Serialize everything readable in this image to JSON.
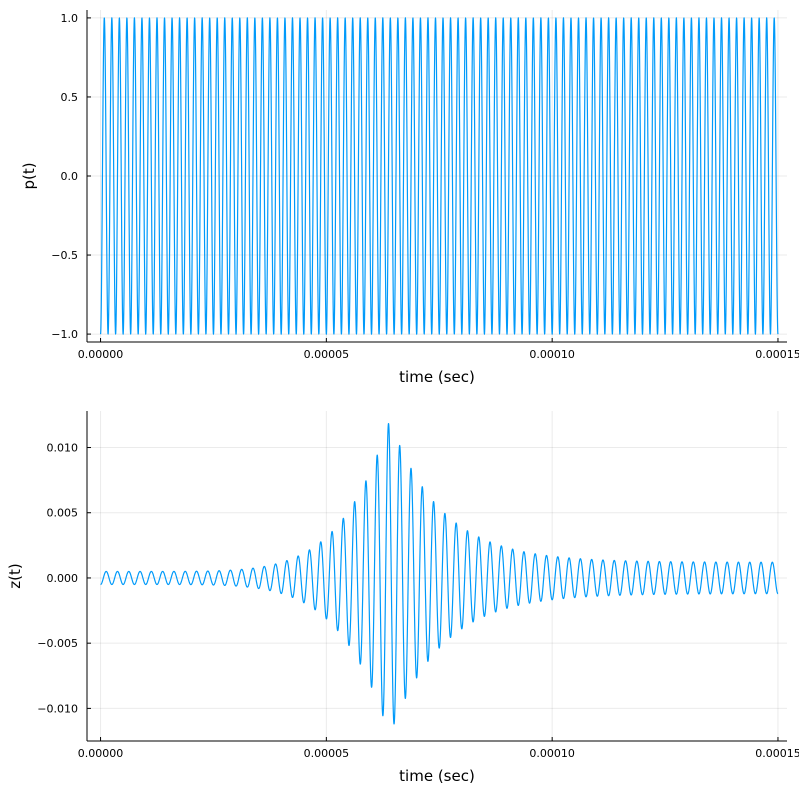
{
  "colors": {
    "series": "#009AFA",
    "background": "#FFFFFF"
  },
  "chart_data": [
    {
      "type": "line",
      "xlabel": "time (sec)",
      "ylabel": "p(t)",
      "xlim": [
        -3e-06,
        0.000152
      ],
      "ylim": [
        -1.05,
        1.05
      ],
      "xticks": [
        0,
        5e-05,
        0.0001,
        0.00015
      ],
      "xtick_labels": [
        "0.00000",
        "0.00005",
        "0.00010",
        "0.00015"
      ],
      "yticks": [
        -1.0,
        -0.5,
        0.0,
        0.5,
        1.0
      ],
      "ytick_labels": [
        "−1.0",
        "−0.5",
        "0.0",
        "0.5",
        "1.0"
      ],
      "grid": true,
      "legend": false,
      "series": [
        {
          "signal": "square-ish sinusoid",
          "x_start": 0,
          "x_end": 0.00015,
          "cycles": 90,
          "min": -1.0,
          "max": 1.0
        }
      ]
    },
    {
      "type": "line",
      "xlabel": "time (sec)",
      "ylabel": "z(t)",
      "xlim": [
        -3e-06,
        0.000152
      ],
      "ylim": [
        -0.0125,
        0.0128
      ],
      "xticks": [
        0,
        5e-05,
        0.0001,
        0.00015
      ],
      "xtick_labels": [
        "0.00000",
        "0.00005",
        "0.00010",
        "0.00015"
      ],
      "yticks": [
        -0.01,
        -0.005,
        0.0,
        0.005,
        0.01
      ],
      "ytick_labels": [
        "−0.010",
        "−0.005",
        "0.000",
        "0.005",
        "0.010"
      ],
      "grid": true,
      "legend": false,
      "series": [
        {
          "signal": "oscillation with resonance envelope",
          "x_start": 0,
          "x_end": 0.00015,
          "cycles": 60,
          "peak_time": 6.4e-05,
          "peak_amplitude": 0.0121,
          "start_amplitude": 0.0005,
          "end_amplitude": 0.0012
        }
      ]
    }
  ]
}
